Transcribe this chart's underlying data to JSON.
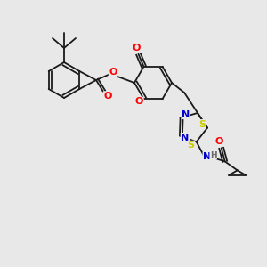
{
  "bg_color": "#e8e8e8",
  "bond_color": "#1a1a1a",
  "bond_lw": 1.3,
  "atom_colors": {
    "O": "#ff0000",
    "N": "#0000cd",
    "S": "#cccc00",
    "H": "#666666",
    "C": "#1a1a1a"
  },
  "font_size": 7.0,
  "scale": 1.0
}
